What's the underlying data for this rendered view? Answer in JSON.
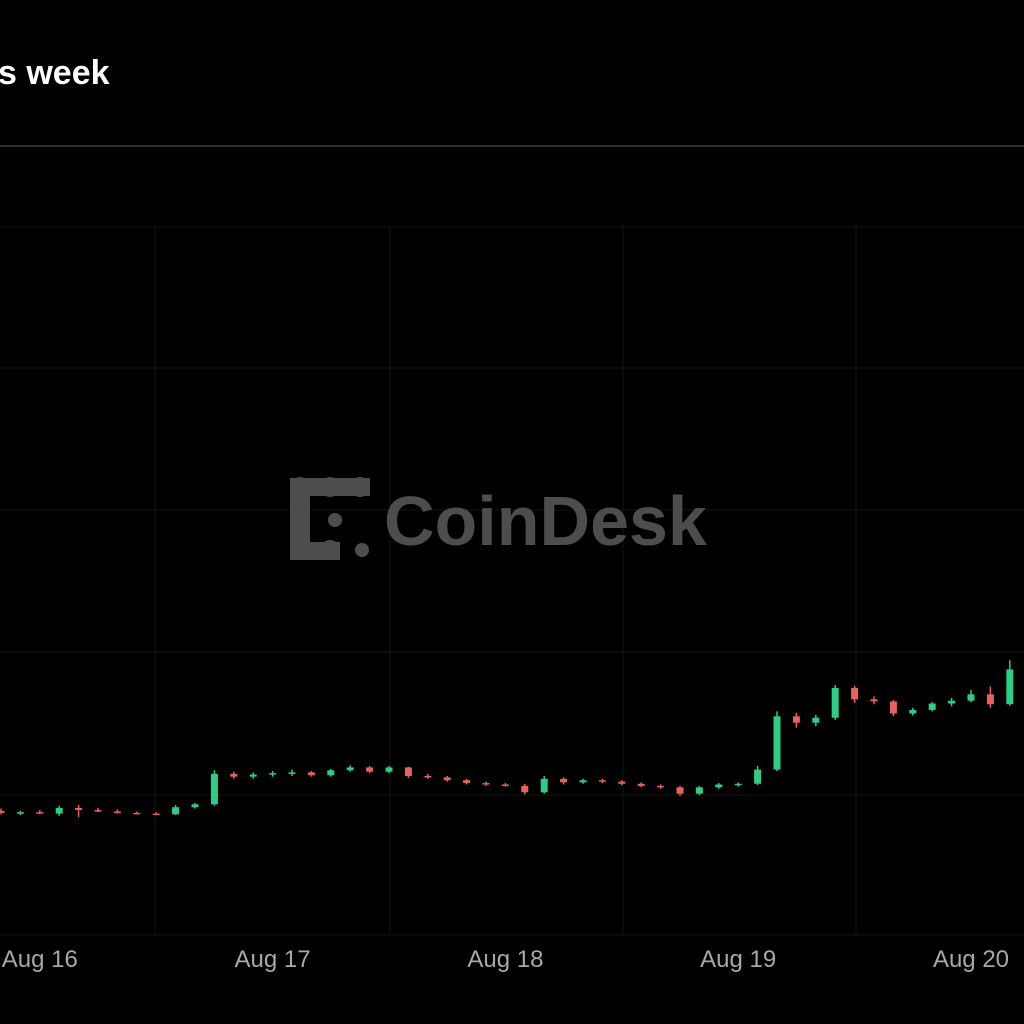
{
  "chart_data": {
    "type": "candlestick",
    "title": "s week",
    "watermark": "CoinDesk",
    "categories": [
      null,
      null,
      "Aug 16",
      null,
      null,
      null,
      null,
      null,
      null,
      null,
      null,
      null,
      null,
      null,
      "Aug 17",
      null,
      null,
      null,
      null,
      null,
      null,
      null,
      null,
      null,
      null,
      null,
      "Aug 18",
      null,
      null,
      null,
      null,
      null,
      null,
      null,
      null,
      null,
      null,
      null,
      "Aug 19",
      null,
      null,
      null,
      null,
      null,
      null,
      null,
      null,
      null,
      null,
      null,
      "Aug 20",
      null,
      null
    ],
    "open": [
      17.5,
      17.2,
      17.3,
      17.1,
      17.9,
      17.6,
      17.4,
      17.2,
      17.1,
      17.0,
      18.0,
      18.4,
      22.7,
      22.3,
      22.6,
      22.8,
      22.9,
      22.5,
      23.2,
      23.6,
      23.0,
      23.6,
      22.4,
      22.2,
      21.8,
      21.4,
      21.2,
      21.0,
      20.1,
      22.0,
      21.5,
      21.8,
      21.6,
      21.3,
      21.0,
      20.8,
      19.9,
      20.8,
      21.2,
      21.3,
      23.3,
      30.8,
      29.9,
      30.6,
      34.8,
      33.2,
      32.9,
      31.2,
      31.7,
      32.6,
      33.0,
      33.9,
      32.5
    ],
    "high": [
      17.8,
      17.5,
      17.6,
      18.2,
      18.3,
      17.9,
      17.7,
      17.4,
      17.3,
      18.3,
      18.6,
      23.2,
      23.0,
      22.9,
      23.1,
      23.3,
      23.1,
      23.4,
      23.9,
      23.8,
      23.8,
      23.7,
      22.7,
      22.4,
      22.0,
      21.6,
      21.4,
      21.3,
      22.4,
      22.2,
      22.0,
      22.0,
      21.8,
      21.5,
      21.2,
      21.0,
      21.0,
      21.4,
      21.5,
      23.8,
      31.5,
      31.3,
      31.0,
      35.2,
      35.1,
      33.6,
      33.1,
      32.0,
      32.8,
      33.4,
      34.5,
      35.0,
      38.7
    ],
    "low": [
      17.0,
      16.9,
      17.0,
      16.8,
      16.6,
      17.3,
      17.1,
      17.0,
      16.9,
      16.9,
      17.8,
      18.2,
      22.0,
      22.0,
      22.3,
      22.4,
      22.3,
      22.3,
      23.0,
      22.8,
      22.8,
      22.1,
      22.0,
      21.6,
      21.2,
      21.0,
      20.9,
      19.8,
      19.9,
      21.2,
      21.3,
      21.4,
      21.1,
      20.8,
      20.6,
      19.6,
      19.7,
      20.6,
      20.9,
      21.1,
      23.1,
      29.2,
      29.4,
      30.3,
      32.7,
      32.5,
      30.8,
      30.9,
      31.5,
      32.2,
      32.8,
      32.0,
      32.3
    ],
    "close": [
      17.2,
      17.3,
      17.1,
      17.9,
      17.6,
      17.4,
      17.2,
      17.1,
      17.0,
      18.0,
      18.4,
      22.7,
      22.3,
      22.6,
      22.8,
      22.9,
      22.5,
      23.2,
      23.6,
      23.0,
      23.6,
      22.4,
      22.2,
      21.8,
      21.4,
      21.2,
      21.0,
      20.1,
      22.0,
      21.5,
      21.8,
      21.6,
      21.3,
      21.0,
      20.8,
      19.9,
      20.8,
      21.2,
      21.3,
      23.3,
      30.8,
      29.9,
      30.6,
      34.8,
      33.2,
      32.9,
      31.2,
      31.7,
      32.6,
      33.0,
      33.9,
      32.5,
      37.4
    ],
    "up_color": "#2ecc85",
    "down_color": "#e86060",
    "ylim": [
      0,
      100
    ]
  }
}
